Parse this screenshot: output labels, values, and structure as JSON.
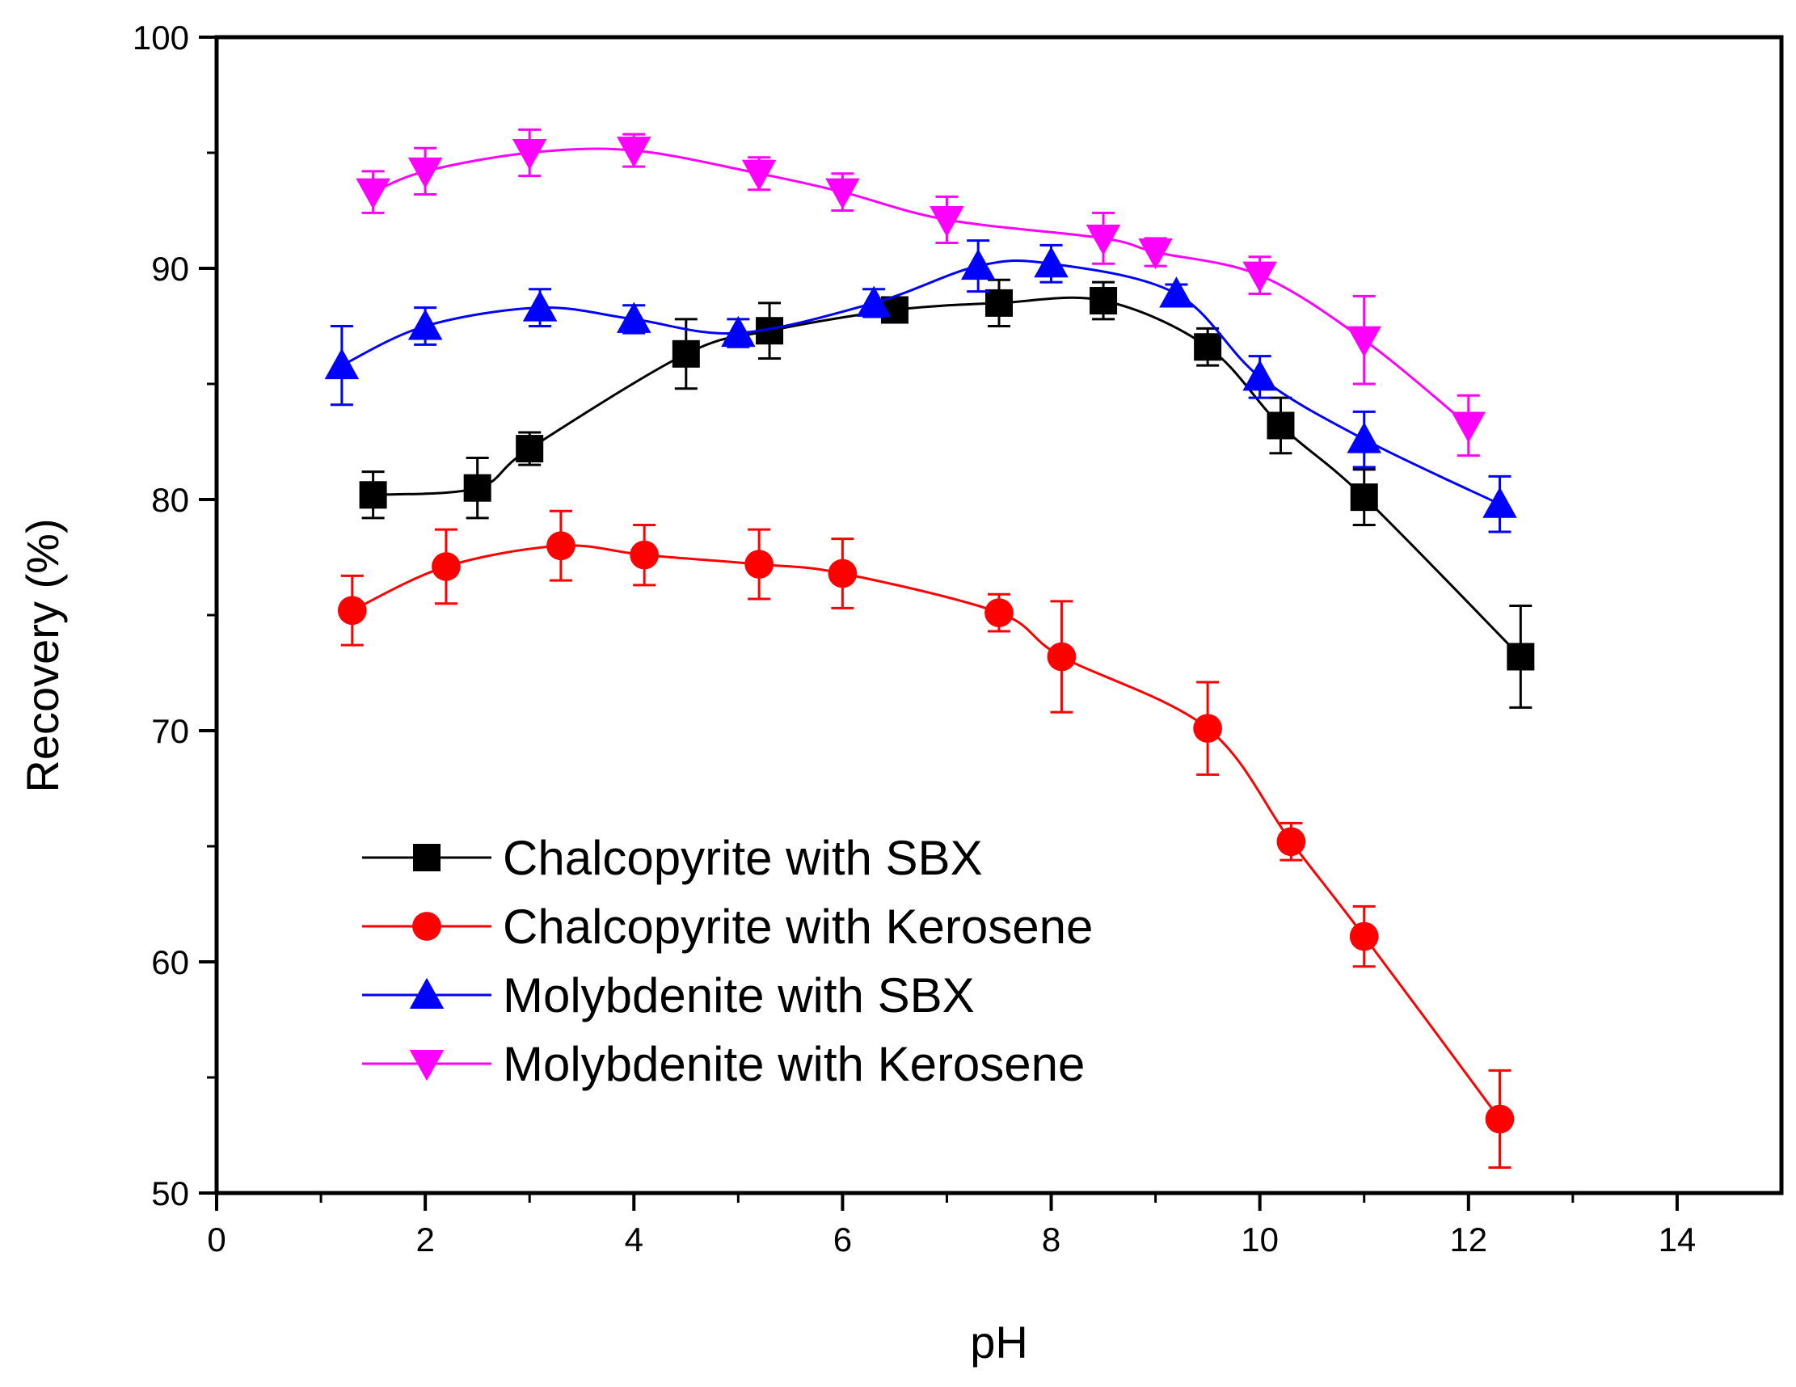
{
  "chart_data": {
    "type": "line",
    "title": "",
    "xlabel": "pH",
    "ylabel": "Recovery (%)",
    "xlim": [
      0,
      15
    ],
    "ylim": [
      50,
      100
    ],
    "xticks": [
      0,
      2,
      4,
      6,
      8,
      10,
      12,
      14
    ],
    "yticks": [
      50,
      60,
      70,
      80,
      90,
      100
    ],
    "grid": false,
    "legend_position": "lower-left",
    "series": [
      {
        "name": "Chalcopyrite with SBX",
        "color": "#000000",
        "marker": "square",
        "x": [
          1.5,
          2.5,
          3.0,
          4.5,
          5.3,
          6.5,
          7.5,
          8.5,
          9.5,
          10.2,
          11.0,
          12.5
        ],
        "y": [
          80.2,
          80.5,
          82.2,
          86.3,
          87.3,
          88.2,
          88.5,
          88.6,
          86.6,
          83.2,
          80.1,
          73.2
        ],
        "err": [
          1.0,
          1.3,
          0.7,
          1.5,
          1.2,
          0.3,
          1.0,
          0.8,
          0.8,
          1.2,
          1.2,
          2.2
        ]
      },
      {
        "name": "Chalcopyrite with Kerosene",
        "color": "#ff0000",
        "marker": "circle",
        "x": [
          1.3,
          2.2,
          3.3,
          4.1,
          5.2,
          6.0,
          7.5,
          8.1,
          9.5,
          10.3,
          11.0,
          12.3
        ],
        "y": [
          75.2,
          77.1,
          78.0,
          77.6,
          77.2,
          76.8,
          75.1,
          73.2,
          70.1,
          65.2,
          61.1,
          53.2
        ],
        "err": [
          1.5,
          1.6,
          1.5,
          1.3,
          1.5,
          1.5,
          0.8,
          2.4,
          2.0,
          0.8,
          1.3,
          2.1
        ]
      },
      {
        "name": "Molybdenite with SBX",
        "color": "#0000ff",
        "marker": "triangle-up",
        "x": [
          1.2,
          2.0,
          3.1,
          4.0,
          5.0,
          6.3,
          7.3,
          8.0,
          9.2,
          10.0,
          11.0,
          12.3
        ],
        "y": [
          85.8,
          87.5,
          88.3,
          87.8,
          87.2,
          88.5,
          90.1,
          90.2,
          88.9,
          85.3,
          82.6,
          79.8
        ],
        "err": [
          1.7,
          0.8,
          0.8,
          0.6,
          0.6,
          0.6,
          1.1,
          0.8,
          0.4,
          0.9,
          1.2,
          1.2
        ]
      },
      {
        "name": "Molybdenite with Kerosene",
        "color": "#ff00ff",
        "marker": "triangle-down",
        "x": [
          1.5,
          2.0,
          3.0,
          4.0,
          5.2,
          6.0,
          7.0,
          8.5,
          9.0,
          10.0,
          11.0,
          12.0
        ],
        "y": [
          93.3,
          94.2,
          95.0,
          95.1,
          94.1,
          93.3,
          92.1,
          91.3,
          90.7,
          89.7,
          86.9,
          83.2
        ],
        "err": [
          0.9,
          1.0,
          1.0,
          0.7,
          0.7,
          0.8,
          1.0,
          1.1,
          0.6,
          0.8,
          1.9,
          1.3
        ]
      }
    ]
  }
}
